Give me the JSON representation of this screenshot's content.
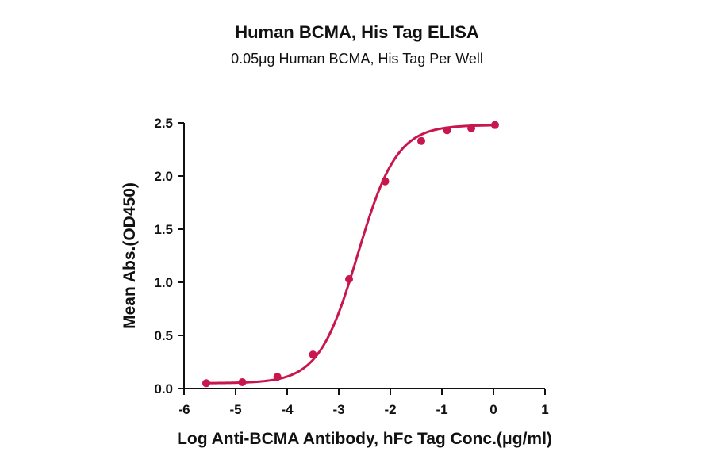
{
  "chart_data": {
    "type": "scatter",
    "title": "Human BCMA, His Tag ELISA",
    "subtitle": "0.05μg Human BCMA, His Tag Per Well",
    "xlabel": "Log Anti-BCMA Antibody, hFc Tag Conc.(μg/ml)",
    "ylabel": "Mean Abs.(OD450)",
    "xlim": [
      -6,
      1
    ],
    "ylim": [
      0,
      2.5
    ],
    "x_ticks": [
      "-6",
      "-5",
      "-4",
      "-3",
      "-2",
      "-1",
      "0",
      "1"
    ],
    "y_ticks": [
      "0.0",
      "0.5",
      "1.0",
      "1.5",
      "2.0",
      "2.5"
    ],
    "grid": false,
    "color": "#c8164e",
    "series": [
      {
        "x": [
          -5.57,
          -4.87,
          -4.19,
          -3.5,
          -2.8,
          -2.1,
          -1.4,
          -0.9,
          -0.43,
          0.03
        ],
        "y": [
          0.05,
          0.06,
          0.11,
          0.32,
          1.03,
          1.95,
          2.33,
          2.43,
          2.45,
          2.48
        ]
      }
    ],
    "fit": {
      "type": "4PL",
      "bottom": 0.05,
      "top": 2.48,
      "logEC50": -2.63,
      "hill": 1.15
    }
  }
}
